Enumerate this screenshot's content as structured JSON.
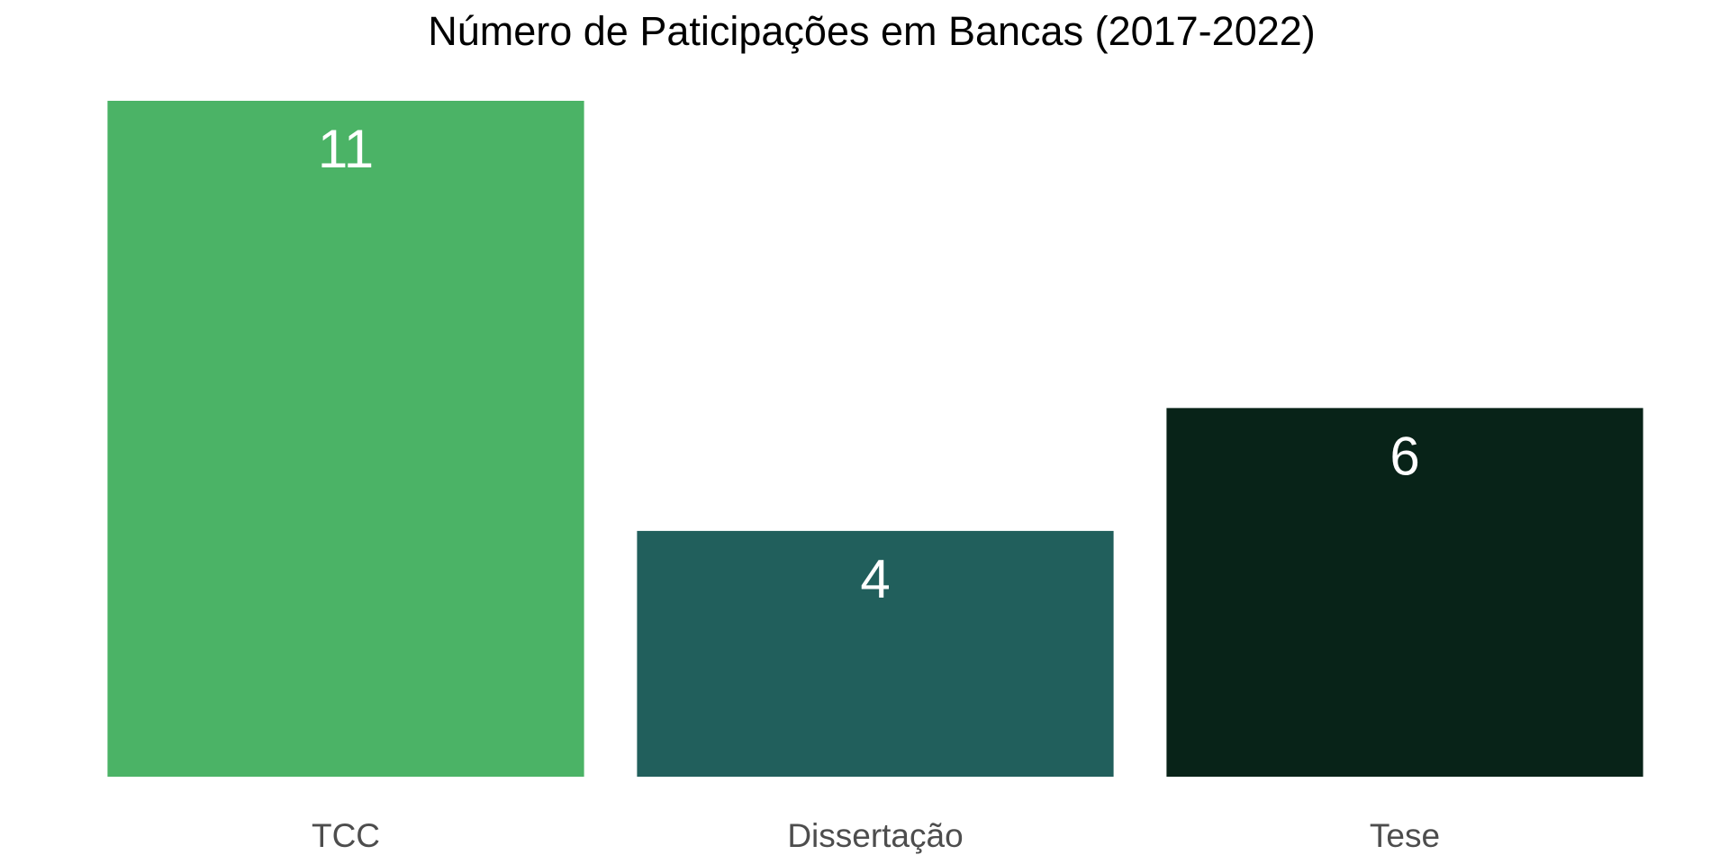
{
  "chart_data": {
    "type": "bar",
    "title": "Número de Paticipações em Bancas (2017-2022)",
    "xlabel": "",
    "ylabel": "",
    "categories": [
      "TCC",
      "Dissertação",
      "Tese"
    ],
    "values": [
      11,
      4,
      6
    ],
    "data_labels": [
      "11",
      "4",
      "6"
    ],
    "colors": [
      "#4bb366",
      "#215f5c",
      "#082318"
    ],
    "label_color": "#ffffff",
    "ylim": [
      0,
      11
    ],
    "grid": false,
    "legend": "none"
  }
}
